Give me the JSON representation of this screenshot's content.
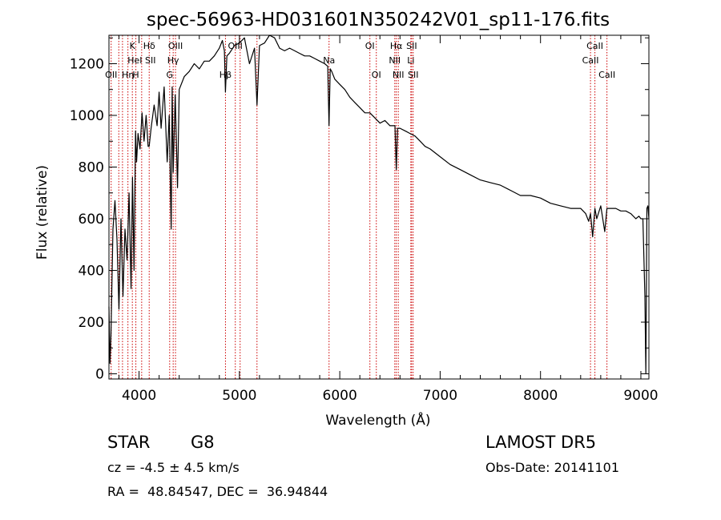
{
  "chart_data": {
    "type": "line",
    "title": "spec-56963-HD031601N350242V01_sp11-176.fits",
    "xlabel": "Wavelength (Å)",
    "ylabel": "Flux (relative)",
    "xlim": [
      3700,
      9080
    ],
    "ylim": [
      -20,
      1310
    ],
    "xticks": [
      4000,
      5000,
      6000,
      7000,
      8000,
      9000
    ],
    "yticks": [
      0,
      200,
      400,
      600,
      800,
      1000,
      1200
    ],
    "grid": false,
    "series": [
      {
        "x": [
          3700,
          3710,
          3720,
          3740,
          3760,
          3780,
          3800,
          3820,
          3840,
          3860,
          3880,
          3900,
          3920,
          3935,
          3950,
          3965,
          3975,
          3990,
          4010,
          4030,
          4050,
          4070,
          4090,
          4101,
          4120,
          4150,
          4180,
          4200,
          4220,
          4250,
          4280,
          4300,
          4320,
          4330,
          4340,
          4360,
          4383,
          4400,
          4450,
          4500,
          4550,
          4600,
          4650,
          4700,
          4750,
          4800,
          4830,
          4850,
          4861,
          4875,
          4900,
          4950,
          5000,
          5050,
          5100,
          5150,
          5175,
          5200,
          5250,
          5300,
          5350,
          5400,
          5450,
          5500,
          5550,
          5600,
          5650,
          5700,
          5750,
          5800,
          5850,
          5880,
          5893,
          5905,
          5920,
          5950,
          6000,
          6050,
          6100,
          6150,
          6200,
          6250,
          6300,
          6350,
          6400,
          6450,
          6500,
          6550,
          6563,
          6575,
          6600,
          6650,
          6700,
          6750,
          6800,
          6850,
          6900,
          7000,
          7100,
          7200,
          7300,
          7400,
          7500,
          7600,
          7700,
          7800,
          7900,
          8000,
          8100,
          8200,
          8300,
          8400,
          8450,
          8480,
          8498,
          8520,
          8542,
          8560,
          8600,
          8640,
          8662,
          8680,
          8750,
          8800,
          8850,
          8900,
          8950,
          8980,
          9000,
          9020,
          9040,
          9050,
          9060,
          9070,
          9080
        ],
        "values": [
          260,
          40,
          150,
          560,
          670,
          520,
          250,
          600,
          300,
          560,
          440,
          700,
          330,
          760,
          400,
          940,
          820,
          930,
          870,
          1010,
          900,
          1000,
          880,
          880,
          950,
          1040,
          960,
          1090,
          950,
          1110,
          820,
          1000,
          560,
          1110,
          780,
          1080,
          720,
          1100,
          1150,
          1170,
          1200,
          1180,
          1210,
          1210,
          1230,
          1260,
          1290,
          1250,
          1090,
          1230,
          1240,
          1270,
          1280,
          1300,
          1200,
          1260,
          1040,
          1270,
          1280,
          1320,
          1300,
          1260,
          1250,
          1260,
          1250,
          1240,
          1230,
          1230,
          1220,
          1210,
          1200,
          1190,
          960,
          1180,
          1170,
          1140,
          1120,
          1100,
          1070,
          1050,
          1030,
          1010,
          1010,
          990,
          970,
          980,
          960,
          960,
          790,
          950,
          950,
          940,
          930,
          920,
          900,
          880,
          870,
          840,
          810,
          790,
          770,
          750,
          740,
          730,
          710,
          690,
          690,
          680,
          660,
          650,
          640,
          640,
          620,
          590,
          620,
          530,
          640,
          600,
          650,
          550,
          640,
          640,
          640,
          630,
          630,
          620,
          600,
          610,
          600,
          600,
          300,
          0,
          640,
          650,
          600
        ]
      }
    ],
    "line_markers": [
      {
        "wavelength": 3722,
        "label": "OII",
        "row": 2
      },
      {
        "wavelength": 3798,
        "label": "",
        "row": 0
      },
      {
        "wavelength": 3835,
        "label": "",
        "row": 0
      },
      {
        "wavelength": 3889,
        "label": "Hη",
        "row": 2
      },
      {
        "wavelength": 3933,
        "label": "K",
        "row": 0
      },
      {
        "wavelength": 3968,
        "label": "H",
        "row": 2
      },
      {
        "wavelength": 4026,
        "label": "HeI SII",
        "row": 1
      },
      {
        "wavelength": 4101,
        "label": "Hδ",
        "row": 0
      },
      {
        "wavelength": 4305,
        "label": "G",
        "row": 2
      },
      {
        "wavelength": 4340,
        "label": "Hγ",
        "row": 1
      },
      {
        "wavelength": 4363,
        "label": "OIII",
        "row": 0
      },
      {
        "wavelength": 4861,
        "label": "Hβ",
        "row": 2
      },
      {
        "wavelength": 4959,
        "label": "OIII",
        "row": 0
      },
      {
        "wavelength": 5007,
        "label": "",
        "row": 0
      },
      {
        "wavelength": 5175,
        "label": "",
        "row": 0
      },
      {
        "wavelength": 5893,
        "label": "Na",
        "row": 1
      },
      {
        "wavelength": 6300,
        "label": "OI",
        "row": 0
      },
      {
        "wavelength": 6364,
        "label": "OI",
        "row": 2
      },
      {
        "wavelength": 6548,
        "label": "NII",
        "row": 1
      },
      {
        "wavelength": 6563,
        "label": "Hα",
        "row": 0
      },
      {
        "wavelength": 6583,
        "label": "NII",
        "row": 2
      },
      {
        "wavelength": 6708,
        "label": "Li",
        "row": 1
      },
      {
        "wavelength": 6716,
        "label": "SII",
        "row": 0
      },
      {
        "wavelength": 6731,
        "label": "SII",
        "row": 2
      },
      {
        "wavelength": 8498,
        "label": "CaII",
        "row": 1
      },
      {
        "wavelength": 8542,
        "label": "CaII",
        "row": 0
      },
      {
        "wavelength": 8662,
        "label": "CaII",
        "row": 2
      }
    ],
    "marker_color": "#cc0000",
    "line_color": "#000000"
  },
  "info": {
    "object_class": "STAR",
    "subclass": "G8",
    "survey": "LAMOST DR5",
    "redshift": "cz = -4.5 ± 4.5 km/s",
    "obs_date": "Obs-Date: 20141101",
    "coords": "RA =  48.84547, DEC =  36.94844"
  }
}
